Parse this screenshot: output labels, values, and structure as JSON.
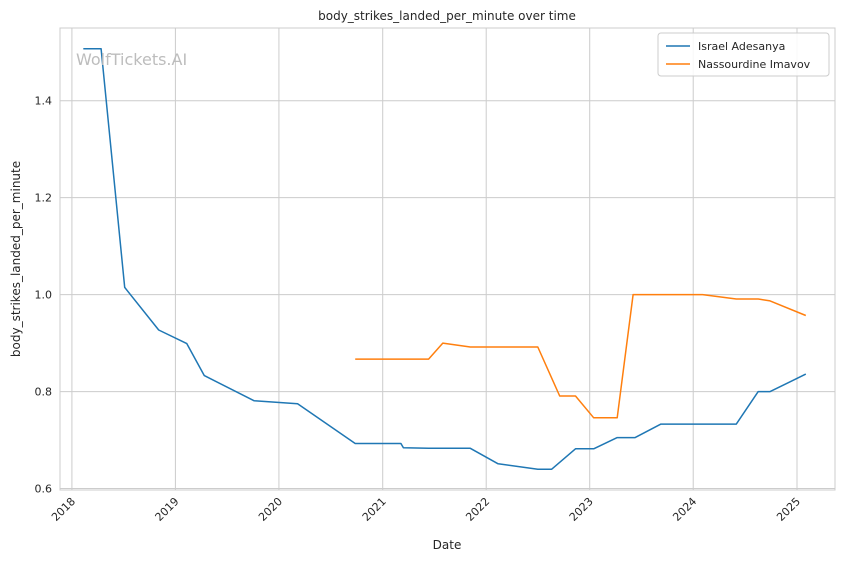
{
  "chart_data": {
    "type": "line",
    "title": "body_strikes_landed_per_minute over time",
    "xlabel": "Date",
    "ylabel": "body_strikes_landed_per_minute",
    "xlim": [
      "2017-11-20",
      "2025-05-15"
    ],
    "ylim": [
      0.597,
      1.55
    ],
    "x_ticks": [
      "2018",
      "2019",
      "2020",
      "2021",
      "2022",
      "2023",
      "2024",
      "2025"
    ],
    "y_ticks": [
      0.6,
      0.8,
      1.0,
      1.2,
      1.4
    ],
    "grid": true,
    "legend_position": "top-right",
    "watermark": "WolfTickets.AI",
    "series": [
      {
        "name": "Israel Adesanya",
        "color": "#1f77b4",
        "points": [
          [
            "2018-02-10",
            1.507
          ],
          [
            "2018-04-14",
            1.507
          ],
          [
            "2018-07-06",
            1.015
          ],
          [
            "2018-11-03",
            0.927
          ],
          [
            "2019-02-10",
            0.899
          ],
          [
            "2019-04-13",
            0.833
          ],
          [
            "2019-10-06",
            0.781
          ],
          [
            "2020-03-07",
            0.775
          ],
          [
            "2020-09-26",
            0.693
          ],
          [
            "2021-03-06",
            0.693
          ],
          [
            "2021-03-15",
            0.684
          ],
          [
            "2021-06-12",
            0.683
          ],
          [
            "2021-11-06",
            0.683
          ],
          [
            "2022-02-12",
            0.651
          ],
          [
            "2022-07-02",
            0.64
          ],
          [
            "2022-08-20",
            0.64
          ],
          [
            "2022-11-12",
            0.682
          ],
          [
            "2023-01-15",
            0.682
          ],
          [
            "2023-04-08",
            0.705
          ],
          [
            "2023-06-10",
            0.705
          ],
          [
            "2023-09-09",
            0.733
          ],
          [
            "2024-06-01",
            0.733
          ],
          [
            "2024-08-17",
            0.8
          ],
          [
            "2024-09-28",
            0.8
          ],
          [
            "2025-02-01",
            0.836
          ]
        ]
      },
      {
        "name": "Nassourdine Imavov",
        "color": "#ff7f0e",
        "points": [
          [
            "2020-09-26",
            0.867
          ],
          [
            "2021-06-12",
            0.867
          ],
          [
            "2021-08-01",
            0.9
          ],
          [
            "2021-11-06",
            0.892
          ],
          [
            "2022-07-02",
            0.892
          ],
          [
            "2022-09-17",
            0.791
          ],
          [
            "2022-11-12",
            0.791
          ],
          [
            "2023-01-15",
            0.746
          ],
          [
            "2023-04-08",
            0.746
          ],
          [
            "2023-06-03",
            1.0
          ],
          [
            "2024-02-03",
            1.0
          ],
          [
            "2024-06-01",
            0.991
          ],
          [
            "2024-08-17",
            0.991
          ],
          [
            "2024-09-28",
            0.987
          ],
          [
            "2025-02-01",
            0.957
          ]
        ]
      }
    ]
  }
}
